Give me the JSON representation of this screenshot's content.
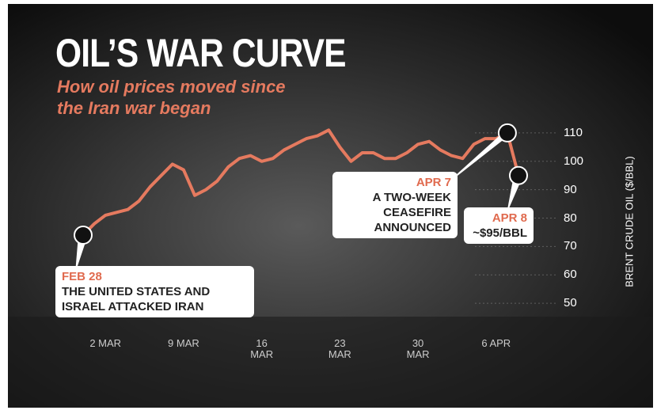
{
  "chart_data": {
    "type": "line",
    "title": "OIL’S WAR CURVE",
    "subtitle": "How oil prices moved since the Iran war began",
    "y_axis_label": "BRENT CRUDE OIL ($/BBL)",
    "categories": [
      null,
      null,
      "2 MAR",
      null,
      null,
      null,
      null,
      null,
      null,
      "9 MAR",
      null,
      null,
      null,
      null,
      null,
      null,
      "16 MAR",
      null,
      null,
      null,
      null,
      null,
      null,
      "23 MAR",
      null,
      null,
      null,
      null,
      null,
      null,
      "30 MAR",
      null,
      null,
      null,
      null,
      null,
      null,
      "6 APR",
      null,
      null
    ],
    "series": [
      {
        "name": "Brent crude",
        "color": "#e57a5f",
        "values": [
          74,
          78,
          81,
          82,
          83,
          86,
          91,
          95,
          99,
          97,
          88,
          90,
          93,
          98,
          101,
          102,
          100,
          101,
          104,
          106,
          108,
          109,
          111,
          105,
          100,
          103,
          103,
          101,
          101,
          103,
          106,
          107,
          104,
          102,
          101,
          106,
          108,
          108,
          110,
          95
        ]
      }
    ],
    "ylim": [
      45,
      115
    ],
    "yticks": [
      50,
      60,
      70,
      80,
      90,
      100,
      110
    ],
    "grid": true,
    "annotations": [
      {
        "point": 0,
        "date": "FEB 28",
        "text": "THE UNITED STATES AND ISRAEL ATTACKED IRAN"
      },
      {
        "point": 38,
        "date": "APR 7",
        "text": "A TWO-WEEK CEASEFIRE ANNOUNCED"
      },
      {
        "point": 39,
        "date": "APR 8",
        "text": "~$95/BBL"
      }
    ]
  }
}
